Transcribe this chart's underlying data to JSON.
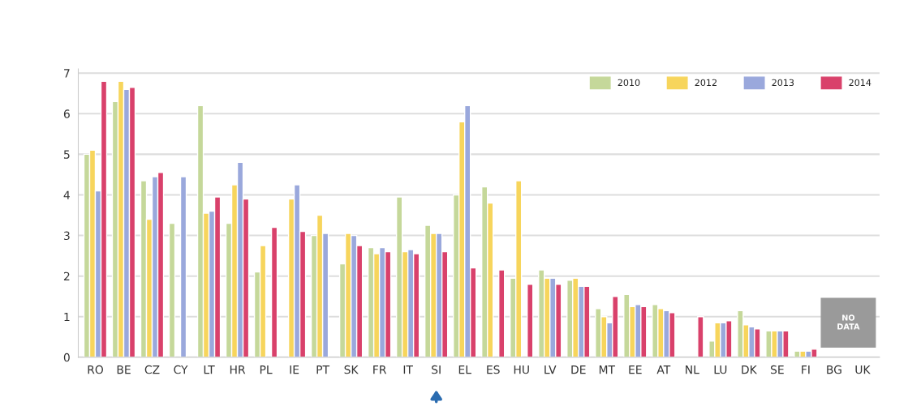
{
  "chart_data": {
    "type": "bar",
    "categories": [
      "RO",
      "BE",
      "CZ",
      "CY",
      "LT",
      "HR",
      "PL",
      "IE",
      "PT",
      "SK",
      "FR",
      "IT",
      "SI",
      "EL",
      "ES",
      "HU",
      "LV",
      "DE",
      "MT",
      "EE",
      "AT",
      "NL",
      "LU",
      "DK",
      "SE",
      "FI",
      "BG",
      "UK"
    ],
    "series": [
      {
        "name": "2010",
        "color": "#c5d89a",
        "values": [
          5.0,
          6.3,
          4.35,
          3.3,
          6.2,
          3.3,
          2.1,
          null,
          3.0,
          2.3,
          2.7,
          3.95,
          3.25,
          4.0,
          4.2,
          1.95,
          2.15,
          1.9,
          1.2,
          1.55,
          1.3,
          null,
          0.4,
          1.15,
          0.65,
          0.15,
          null,
          null
        ]
      },
      {
        "name": "2012",
        "color": "#f7d55c",
        "values": [
          5.1,
          6.8,
          3.4,
          null,
          3.55,
          4.25,
          2.75,
          3.9,
          3.5,
          3.05,
          2.55,
          2.6,
          3.05,
          5.8,
          3.8,
          4.35,
          1.95,
          1.95,
          1.0,
          1.25,
          1.2,
          null,
          0.85,
          0.8,
          0.65,
          0.15,
          null,
          null
        ]
      },
      {
        "name": "2013",
        "color": "#9aa8dc",
        "values": [
          4.1,
          6.6,
          4.45,
          4.45,
          3.6,
          4.8,
          null,
          4.25,
          3.05,
          3.0,
          2.7,
          2.65,
          3.05,
          6.2,
          null,
          null,
          1.95,
          1.75,
          0.85,
          1.3,
          1.15,
          null,
          0.85,
          0.75,
          0.65,
          0.15,
          null,
          null
        ]
      },
      {
        "name": "2014",
        "color": "#d9416b",
        "values": [
          6.8,
          6.65,
          4.55,
          null,
          3.95,
          3.9,
          3.2,
          3.1,
          null,
          2.75,
          2.6,
          2.55,
          2.6,
          2.2,
          2.15,
          1.8,
          1.8,
          1.75,
          1.5,
          1.25,
          1.1,
          1.0,
          0.9,
          0.7,
          0.65,
          0.2,
          null,
          null
        ]
      }
    ],
    "ylim": [
      0,
      7.1
    ],
    "yticks": [
      0,
      1,
      2,
      3,
      4,
      5,
      6,
      7
    ],
    "grid": "y",
    "legend": "top right",
    "annotations": [
      "NO DATA"
    ]
  }
}
